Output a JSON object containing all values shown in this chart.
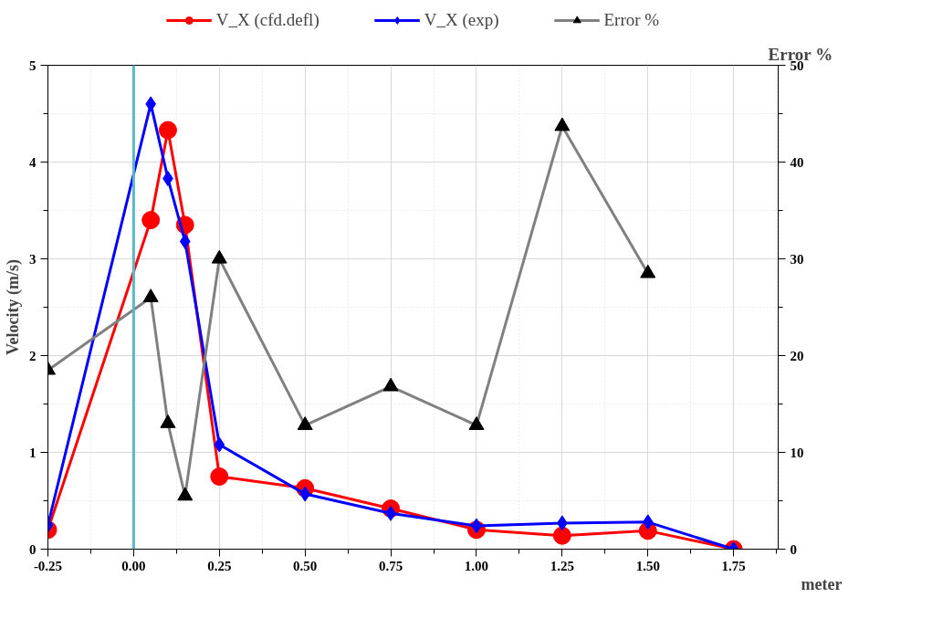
{
  "chart_data": {
    "type": "line",
    "ylabel": "Velocity (m/s)",
    "y2label": "Error %",
    "xlabel": "meter",
    "x": [
      -0.25,
      0.05,
      0.1,
      0.15,
      0.25,
      0.5,
      0.75,
      1.0,
      1.25,
      1.5,
      1.75
    ],
    "series": [
      {
        "name": "V_X (cfd.defl)",
        "color": "#ff0000",
        "marker": "circle",
        "values": [
          0.2,
          3.4,
          4.33,
          3.35,
          0.75,
          0.63,
          0.42,
          0.2,
          0.14,
          0.19,
          0.0
        ]
      },
      {
        "name": "V_X (exp)",
        "color": "#0000ff",
        "marker": "diamond",
        "values": [
          0.25,
          4.6,
          3.83,
          3.18,
          1.08,
          0.57,
          0.37,
          0.24,
          0.27,
          0.28,
          0.0
        ]
      },
      {
        "name": "Error %",
        "color": "#808080",
        "marker": "triangle",
        "axis": "y2",
        "values": [
          18.5,
          26,
          13,
          5.5,
          30,
          12.8,
          16.8,
          12.8,
          43.7,
          28.5,
          null
        ]
      }
    ],
    "xlim": [
      -0.25,
      1.88
    ],
    "xticks": [
      {
        "value": -0.25,
        "label": "-0.25"
      },
      {
        "value": 0,
        "label": "0.00"
      },
      {
        "value": 0.25,
        "label": "0.25"
      },
      {
        "value": 0.5,
        "label": "0.50"
      },
      {
        "value": 0.75,
        "label": "0.75"
      },
      {
        "value": 1.0,
        "label": "1.00"
      },
      {
        "value": 1.25,
        "label": "1.25"
      },
      {
        "value": 1.5,
        "label": "1.50"
      },
      {
        "value": 1.75,
        "label": "1.75"
      }
    ],
    "ylim": [
      0,
      5
    ],
    "yticks": [
      0,
      1,
      2,
      3,
      4,
      5
    ],
    "y2lim": [
      0,
      50
    ],
    "y2ticks": [
      0,
      10,
      20,
      30,
      40,
      50
    ],
    "ref_lines": [
      {
        "axis": "x",
        "value": 0,
        "color": "#5bb8c8"
      }
    ],
    "grid": true,
    "legend": "top",
    "line_style": "solid"
  }
}
